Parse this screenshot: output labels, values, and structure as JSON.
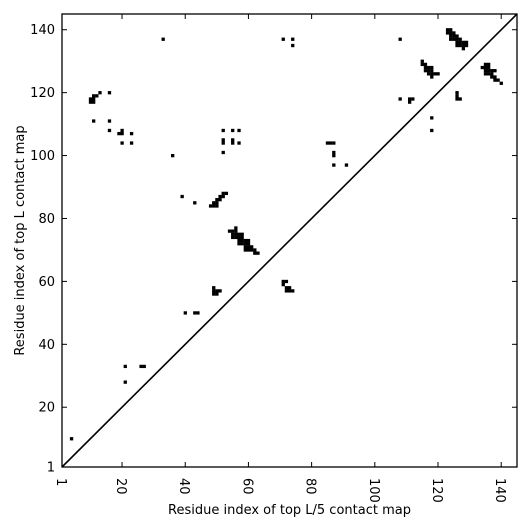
{
  "chart_data": {
    "type": "heatmap",
    "title": "",
    "xlabel": "Residue index of top L/5 contact map",
    "ylabel": "Residue index of top L contact map",
    "xlim": [
      1,
      145
    ],
    "ylim": [
      1,
      145
    ],
    "x_ticks": [
      1,
      20,
      40,
      60,
      80,
      100,
      120,
      140
    ],
    "y_ticks": [
      1,
      20,
      40,
      60,
      80,
      100,
      120,
      140
    ],
    "diagonal": true,
    "grid": false,
    "color": "#000000",
    "cells": [
      [
        4,
        10
      ],
      [
        10,
        117
      ],
      [
        11,
        117
      ],
      [
        10,
        118
      ],
      [
        11,
        118
      ],
      [
        11,
        119
      ],
      [
        12,
        119
      ],
      [
        13,
        120
      ],
      [
        11,
        111
      ],
      [
        16,
        120
      ],
      [
        16,
        111
      ],
      [
        16,
        108
      ],
      [
        19,
        107
      ],
      [
        20,
        107
      ],
      [
        20,
        108
      ],
      [
        23,
        107
      ],
      [
        20,
        104
      ],
      [
        23,
        104
      ],
      [
        21,
        33
      ],
      [
        21,
        28
      ],
      [
        26,
        33
      ],
      [
        27,
        33
      ],
      [
        33,
        137
      ],
      [
        36,
        100
      ],
      [
        39,
        87
      ],
      [
        40,
        50
      ],
      [
        43,
        85
      ],
      [
        43,
        50
      ],
      [
        44,
        50
      ],
      [
        48,
        84
      ],
      [
        49,
        84
      ],
      [
        49,
        85
      ],
      [
        50,
        84
      ],
      [
        50,
        85
      ],
      [
        50,
        86
      ],
      [
        51,
        86
      ],
      [
        51,
        87
      ],
      [
        52,
        87
      ],
      [
        52,
        88
      ],
      [
        53,
        88
      ],
      [
        49,
        56
      ],
      [
        49,
        57
      ],
      [
        49,
        58
      ],
      [
        50,
        56
      ],
      [
        50,
        57
      ],
      [
        51,
        57
      ],
      [
        52,
        108
      ],
      [
        52,
        105
      ],
      [
        52,
        104
      ],
      [
        52,
        101
      ],
      [
        55,
        108
      ],
      [
        55,
        105
      ],
      [
        55,
        104
      ],
      [
        57,
        108
      ],
      [
        57,
        104
      ],
      [
        54,
        76
      ],
      [
        55,
        76
      ],
      [
        55,
        75
      ],
      [
        55,
        74
      ],
      [
        56,
        77
      ],
      [
        56,
        76
      ],
      [
        56,
        75
      ],
      [
        56,
        74
      ],
      [
        57,
        75
      ],
      [
        57,
        74
      ],
      [
        57,
        73
      ],
      [
        57,
        72
      ],
      [
        58,
        75
      ],
      [
        58,
        74
      ],
      [
        58,
        73
      ],
      [
        58,
        72
      ],
      [
        59,
        73
      ],
      [
        59,
        72
      ],
      [
        59,
        71
      ],
      [
        59,
        70
      ],
      [
        60,
        73
      ],
      [
        60,
        72
      ],
      [
        60,
        71
      ],
      [
        60,
        70
      ],
      [
        61,
        71
      ],
      [
        61,
        70
      ],
      [
        62,
        70
      ],
      [
        62,
        69
      ],
      [
        63,
        69
      ],
      [
        71,
        137
      ],
      [
        74,
        137
      ],
      [
        74,
        135
      ],
      [
        71,
        60
      ],
      [
        71,
        59
      ],
      [
        72,
        60
      ],
      [
        72,
        58
      ],
      [
        72,
        57
      ],
      [
        73,
        58
      ],
      [
        73,
        57
      ],
      [
        74,
        57
      ],
      [
        85,
        104
      ],
      [
        86,
        104
      ],
      [
        87,
        104
      ],
      [
        87,
        101
      ],
      [
        87,
        100
      ],
      [
        87,
        97
      ],
      [
        91,
        97
      ],
      [
        108,
        137
      ],
      [
        108,
        118
      ],
      [
        111,
        118
      ],
      [
        111,
        117
      ],
      [
        112,
        118
      ],
      [
        115,
        130
      ],
      [
        115,
        129
      ],
      [
        116,
        129
      ],
      [
        116,
        128
      ],
      [
        116,
        127
      ],
      [
        117,
        128
      ],
      [
        117,
        127
      ],
      [
        117,
        126
      ],
      [
        118,
        128
      ],
      [
        118,
        127
      ],
      [
        118,
        126
      ],
      [
        118,
        125
      ],
      [
        119,
        126
      ],
      [
        120,
        126
      ],
      [
        118,
        112
      ],
      [
        118,
        108
      ],
      [
        123,
        140
      ],
      [
        123,
        139
      ],
      [
        124,
        140
      ],
      [
        124,
        139
      ],
      [
        124,
        138
      ],
      [
        124,
        137
      ],
      [
        125,
        139
      ],
      [
        125,
        138
      ],
      [
        125,
        137
      ],
      [
        126,
        138
      ],
      [
        126,
        137
      ],
      [
        126,
        136
      ],
      [
        126,
        135
      ],
      [
        127,
        137
      ],
      [
        127,
        136
      ],
      [
        127,
        135
      ],
      [
        128,
        136
      ],
      [
        128,
        135
      ],
      [
        128,
        134
      ],
      [
        129,
        136
      ],
      [
        129,
        135
      ],
      [
        126,
        120
      ],
      [
        126,
        119
      ],
      [
        126,
        118
      ],
      [
        127,
        118
      ],
      [
        134,
        128
      ],
      [
        135,
        129
      ],
      [
        135,
        128
      ],
      [
        135,
        127
      ],
      [
        135,
        126
      ],
      [
        136,
        129
      ],
      [
        136,
        128
      ],
      [
        136,
        127
      ],
      [
        136,
        126
      ],
      [
        137,
        127
      ],
      [
        137,
        126
      ],
      [
        137,
        125
      ],
      [
        138,
        127
      ],
      [
        138,
        125
      ],
      [
        138,
        124
      ],
      [
        139,
        124
      ],
      [
        140,
        123
      ]
    ]
  }
}
